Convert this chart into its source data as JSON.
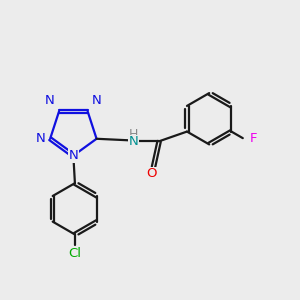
{
  "background_color": "#ececec",
  "bond_color": "#1a1a1a",
  "tetrazole_N_color": "#1010e0",
  "N_link_color": "#009090",
  "O_color": "#ee0000",
  "F_color": "#ee00ee",
  "Cl_color": "#00aa00",
  "bond_width": 1.6,
  "font_size": 9.5,
  "xlim": [
    -1.0,
    8.5
  ],
  "ylim": [
    -3.5,
    4.5
  ],
  "figsize": [
    3.0,
    3.0
  ],
  "dpi": 100
}
